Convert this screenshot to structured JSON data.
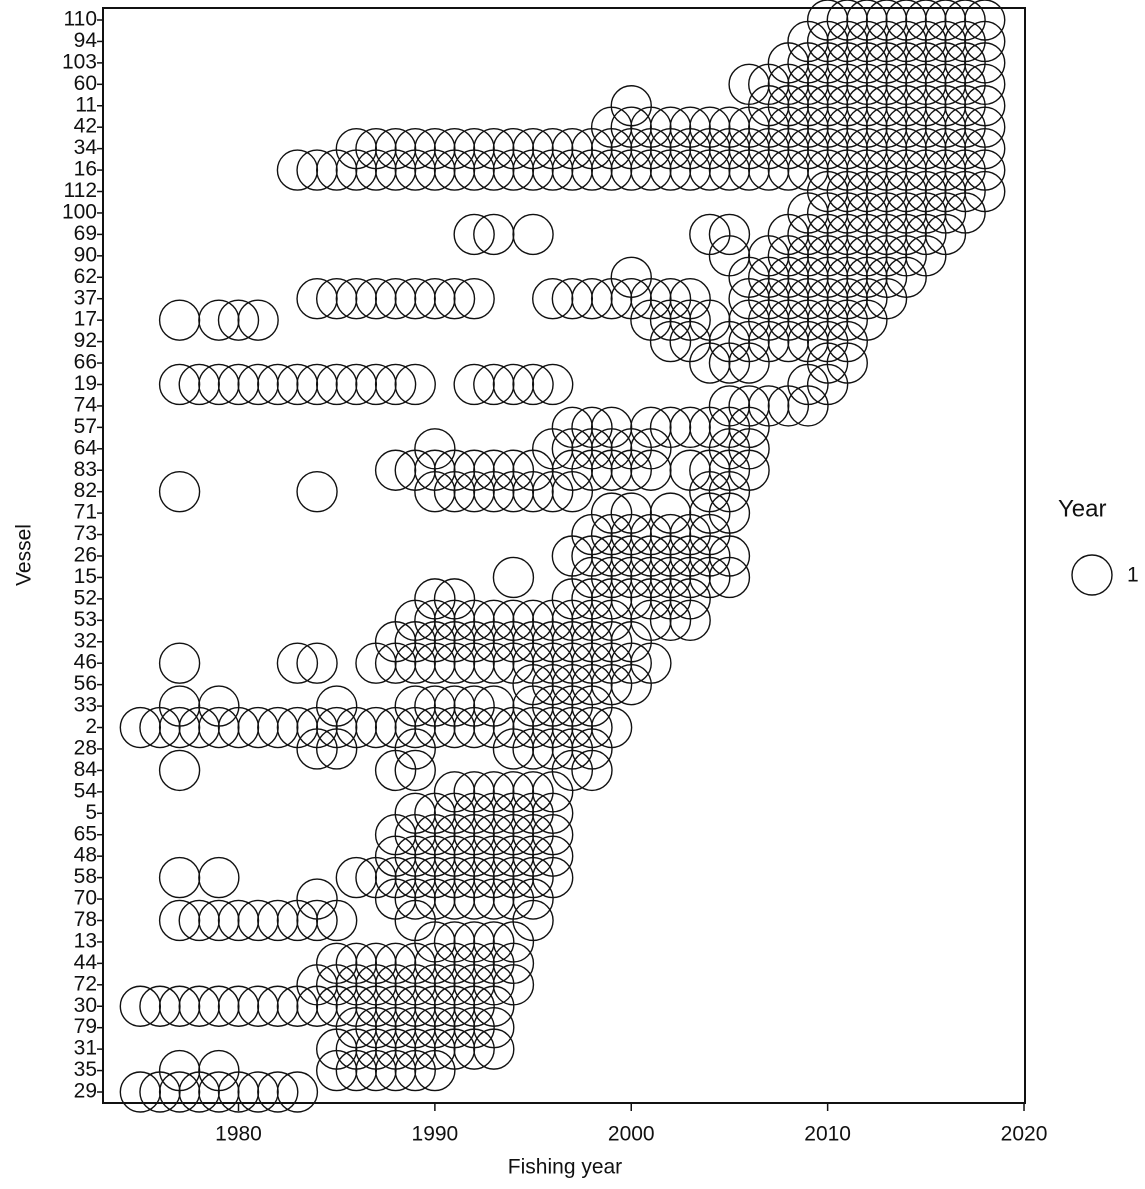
{
  "chart_data": {
    "type": "scatter",
    "x_label": "Fishing year",
    "y_label": "Vessel",
    "xlim": [
      1973.1,
      2020.05
    ],
    "xticks": [
      1980,
      1990,
      2000,
      2010,
      2020
    ],
    "size_legend": {
      "title": "Year",
      "values": [
        1
      ]
    },
    "categories": [
      "110",
      "94",
      "103",
      "60",
      "11",
      "42",
      "34",
      "16",
      "112",
      "100",
      "69",
      "90",
      "62",
      "37",
      "17",
      "92",
      "66",
      "19",
      "74",
      "57",
      "64",
      "83",
      "82",
      "71",
      "73",
      "26",
      "15",
      "52",
      "53",
      "32",
      "46",
      "56",
      "33",
      "2",
      "28",
      "84",
      "54",
      "5",
      "65",
      "48",
      "58",
      "70",
      "78",
      "13",
      "44",
      "72",
      "30",
      "79",
      "31",
      "35",
      "29"
    ],
    "years": [
      [
        2010,
        2011,
        2012,
        2013,
        2014,
        2015,
        2016,
        2017,
        2018
      ],
      [
        2009,
        2010,
        2011,
        2012,
        2013,
        2014,
        2015,
        2016,
        2017,
        2018
      ],
      [
        2008,
        2009,
        2010,
        2011,
        2012,
        2013,
        2014,
        2015,
        2016,
        2017,
        2018
      ],
      [
        2006,
        2007,
        2008,
        2009,
        2010,
        2011,
        2012,
        2013,
        2014,
        2015,
        2016,
        2017,
        2018
      ],
      [
        2000,
        2007,
        2008,
        2009,
        2010,
        2011,
        2012,
        2013,
        2014,
        2015,
        2016,
        2017,
        2018
      ],
      [
        1999,
        2000,
        2001,
        2002,
        2003,
        2004,
        2005,
        2006,
        2007,
        2008,
        2009,
        2010,
        2011,
        2012,
        2013,
        2014,
        2015,
        2016,
        2017,
        2018
      ],
      [
        1986,
        1987,
        1988,
        1989,
        1990,
        1991,
        1992,
        1993,
        1994,
        1995,
        1996,
        1997,
        1998,
        1999,
        2000,
        2001,
        2002,
        2003,
        2004,
        2005,
        2006,
        2007,
        2008,
        2009,
        2010,
        2011,
        2012,
        2013,
        2014,
        2015,
        2016,
        2017,
        2018
      ],
      [
        1983,
        1984,
        1985,
        1986,
        1987,
        1988,
        1989,
        1990,
        1991,
        1992,
        1993,
        1994,
        1995,
        1996,
        1997,
        1998,
        1999,
        2000,
        2001,
        2002,
        2003,
        2004,
        2005,
        2006,
        2007,
        2008,
        2009,
        2010,
        2011,
        2012,
        2013,
        2014,
        2015,
        2016,
        2017,
        2018
      ],
      [
        2010,
        2011,
        2012,
        2013,
        2014,
        2015,
        2016,
        2017,
        2018
      ],
      [
        2009,
        2010,
        2011,
        2012,
        2013,
        2014,
        2015,
        2016,
        2017
      ],
      [
        1992,
        1993,
        1995,
        2004,
        2005,
        2008,
        2009,
        2010,
        2011,
        2012,
        2013,
        2014,
        2015,
        2016
      ],
      [
        2005,
        2007,
        2008,
        2009,
        2010,
        2011,
        2012,
        2013,
        2014,
        2015
      ],
      [
        2000,
        2006,
        2007,
        2008,
        2009,
        2010,
        2011,
        2012,
        2013,
        2014
      ],
      [
        1984,
        1985,
        1986,
        1987,
        1988,
        1989,
        1990,
        1991,
        1992,
        1996,
        1997,
        1998,
        1999,
        2000,
        2001,
        2002,
        2003,
        2006,
        2007,
        2008,
        2009,
        2010,
        2011,
        2012,
        2013
      ],
      [
        1977,
        1979,
        1980,
        1981,
        2001,
        2002,
        2003,
        2004,
        2006,
        2007,
        2008,
        2009,
        2010,
        2011,
        2012
      ],
      [
        2002,
        2003,
        2005,
        2006,
        2007,
        2008,
        2009,
        2010,
        2011
      ],
      [
        2004,
        2005,
        2006,
        2010,
        2011
      ],
      [
        1977,
        1978,
        1979,
        1980,
        1981,
        1982,
        1983,
        1984,
        1985,
        1986,
        1987,
        1988,
        1989,
        1992,
        1993,
        1994,
        1995,
        1996,
        2009,
        2010
      ],
      [
        2005,
        2006,
        2007,
        2008,
        2009
      ],
      [
        1997,
        1998,
        1999,
        2001,
        2002,
        2003,
        2004,
        2005,
        2006
      ],
      [
        1990,
        1996,
        1997,
        1998,
        1999,
        2000,
        2001,
        2005,
        2006
      ],
      [
        1988,
        1989,
        1990,
        1991,
        1992,
        1993,
        1994,
        1995,
        1997,
        1998,
        1999,
        2000,
        2001,
        2003,
        2004,
        2005,
        2006
      ],
      [
        1977,
        1984,
        1990,
        1991,
        1992,
        1993,
        1994,
        1995,
        1996,
        1997,
        2004,
        2005
      ],
      [
        1999,
        2000,
        2002,
        2004,
        2005
      ],
      [
        1998,
        1999,
        2000,
        2001,
        2002,
        2003,
        2004
      ],
      [
        1997,
        1998,
        1999,
        2000,
        2001,
        2002,
        2003,
        2004,
        2005
      ],
      [
        1994,
        1998,
        1999,
        2000,
        2001,
        2002,
        2003,
        2004,
        2005
      ],
      [
        1990,
        1991,
        1997,
        1998,
        1999,
        2000,
        2001,
        2002,
        2003
      ],
      [
        1989,
        1990,
        1991,
        1992,
        1993,
        1994,
        1995,
        1996,
        1997,
        1998,
        1999,
        2001,
        2002,
        2003
      ],
      [
        1988,
        1989,
        1990,
        1991,
        1992,
        1993,
        1994,
        1995,
        1996,
        1997,
        1998,
        1999,
        2000
      ],
      [
        1977,
        1983,
        1984,
        1987,
        1988,
        1989,
        1990,
        1991,
        1992,
        1993,
        1994,
        1995,
        1996,
        1997,
        1998,
        1999,
        2000,
        2001
      ],
      [
        1995,
        1996,
        1997,
        1998,
        1999,
        2000
      ],
      [
        1977,
        1979,
        1985,
        1989,
        1990,
        1991,
        1992,
        1993,
        1995,
        1996,
        1997,
        1998
      ],
      [
        1975,
        1976,
        1977,
        1978,
        1979,
        1980,
        1981,
        1982,
        1983,
        1984,
        1985,
        1986,
        1987,
        1988,
        1989,
        1990,
        1991,
        1992,
        1993,
        1994,
        1995,
        1996,
        1997,
        1998,
        1999
      ],
      [
        1984,
        1985,
        1989,
        1994,
        1995,
        1996,
        1997,
        1998
      ],
      [
        1977,
        1988,
        1989,
        1997,
        1998
      ],
      [
        1991,
        1992,
        1993,
        1994,
        1995,
        1996
      ],
      [
        1989,
        1990,
        1991,
        1992,
        1993,
        1994,
        1995,
        1996
      ],
      [
        1988,
        1989,
        1990,
        1991,
        1992,
        1993,
        1994,
        1995,
        1996
      ],
      [
        1988,
        1989,
        1990,
        1991,
        1992,
        1993,
        1994,
        1995,
        1996
      ],
      [
        1977,
        1979,
        1986,
        1987,
        1988,
        1989,
        1990,
        1991,
        1992,
        1993,
        1994,
        1995,
        1996
      ],
      [
        1984,
        1988,
        1989,
        1990,
        1991,
        1992,
        1993,
        1994,
        1995
      ],
      [
        1977,
        1978,
        1979,
        1980,
        1981,
        1982,
        1983,
        1984,
        1985,
        1989,
        1995
      ],
      [
        1990,
        1991,
        1992,
        1993,
        1994
      ],
      [
        1985,
        1986,
        1987,
        1988,
        1989,
        1990,
        1991,
        1992,
        1993,
        1994
      ],
      [
        1984,
        1985,
        1986,
        1987,
        1988,
        1989,
        1990,
        1991,
        1992,
        1993,
        1994
      ],
      [
        1975,
        1976,
        1977,
        1978,
        1979,
        1980,
        1981,
        1982,
        1983,
        1984,
        1985,
        1986,
        1987,
        1988,
        1989,
        1990,
        1991,
        1992,
        1993
      ],
      [
        1986,
        1987,
        1988,
        1989,
        1990,
        1991,
        1992,
        1993
      ],
      [
        1985,
        1986,
        1987,
        1988,
        1989,
        1990,
        1991,
        1992,
        1993
      ],
      [
        1977,
        1979,
        1985,
        1986,
        1987,
        1988,
        1989,
        1990
      ],
      [
        1975,
        1976,
        1977,
        1978,
        1979,
        1980,
        1981,
        1982,
        1983
      ]
    ]
  }
}
